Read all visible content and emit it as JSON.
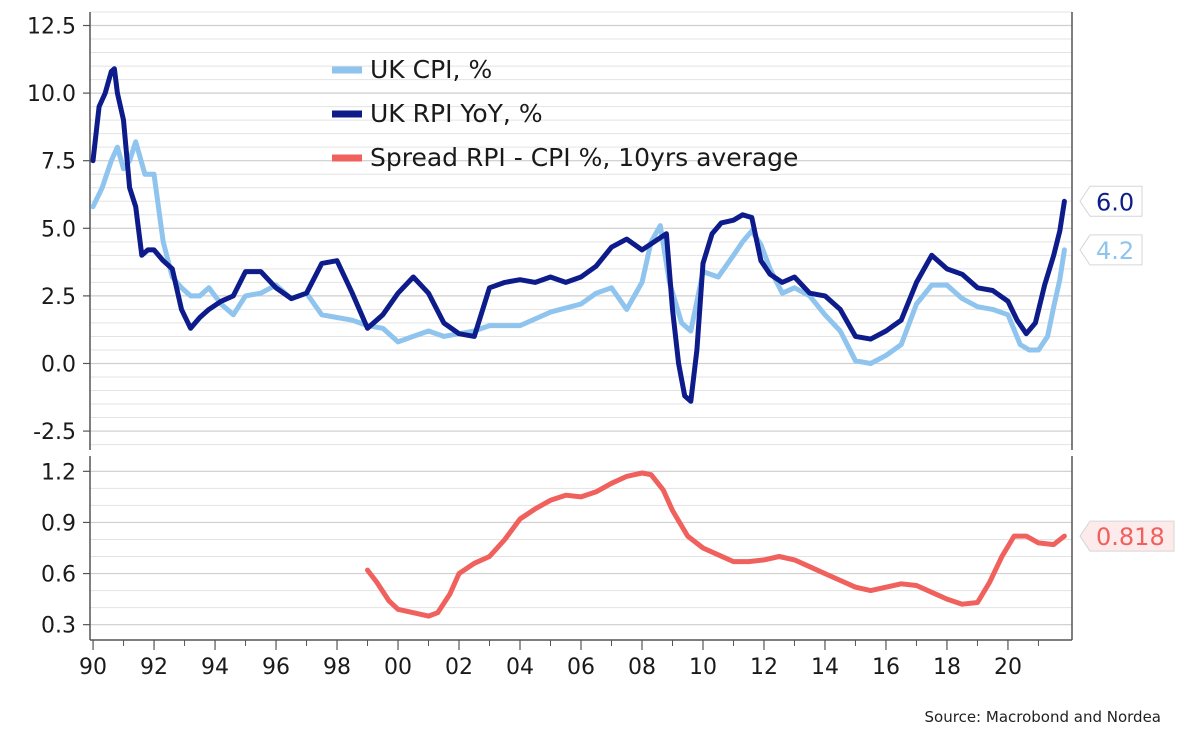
{
  "source": "Source: Macrobond and Nordea",
  "chart_data": [
    {
      "type": "line",
      "ylim": [
        -3.2,
        13.0
      ],
      "y_ticks": [
        12.5,
        10.0,
        7.5,
        5.0,
        2.5,
        0.0,
        -2.5
      ],
      "y_tick_labels": [
        "12.5",
        "10.0",
        "7.5",
        "5.0",
        "2.5",
        "0.0",
        "-2.5"
      ],
      "legend": {
        "entries": [
          "UK CPI, %",
          "UK RPI YoY, %",
          "Spread RPI - CPI %, 10yrs average"
        ],
        "colors": [
          "#8EC4EE",
          "#0D1C8A",
          "#F0605D"
        ],
        "placement": "top-center"
      },
      "series": [
        {
          "name": "UK CPI, %",
          "color": "#8EC4EE",
          "end_label": "4.2",
          "x": [
            1990.0,
            1990.3,
            1990.6,
            1990.8,
            1991.0,
            1991.2,
            1991.4,
            1991.7,
            1992.0,
            1992.3,
            1992.6,
            1992.9,
            1993.2,
            1993.5,
            1993.8,
            1994.2,
            1994.6,
            1995.0,
            1995.5,
            1996.0,
            1996.5,
            1997.0,
            1997.5,
            1998.0,
            1998.5,
            1999.0,
            1999.5,
            2000.0,
            2000.5,
            2001.0,
            2001.5,
            2002.0,
            2002.5,
            2003.0,
            2004.0,
            2005.0,
            2006.0,
            2006.5,
            2007.0,
            2007.5,
            2008.0,
            2008.3,
            2008.6,
            2008.9,
            2009.3,
            2009.6,
            2010.0,
            2010.5,
            2011.0,
            2011.3,
            2011.6,
            2011.9,
            2012.2,
            2012.6,
            2013.0,
            2013.5,
            2014.0,
            2014.5,
            2015.0,
            2015.5,
            2016.0,
            2016.5,
            2017.0,
            2017.5,
            2018.0,
            2018.5,
            2019.0,
            2019.5,
            2020.0,
            2020.4,
            2020.7,
            2021.0,
            2021.3,
            2021.5,
            2021.7,
            2021.85
          ],
          "y": [
            5.8,
            6.5,
            7.5,
            8.0,
            7.2,
            7.5,
            8.2,
            7.0,
            7.0,
            4.5,
            3.2,
            2.8,
            2.5,
            2.5,
            2.8,
            2.2,
            1.8,
            2.5,
            2.6,
            2.9,
            2.4,
            2.6,
            1.8,
            1.7,
            1.6,
            1.4,
            1.3,
            0.8,
            1.0,
            1.2,
            1.0,
            1.1,
            1.2,
            1.4,
            1.4,
            1.9,
            2.2,
            2.6,
            2.8,
            2.0,
            3.0,
            4.5,
            5.1,
            3.0,
            1.5,
            1.2,
            3.4,
            3.2,
            4.0,
            4.5,
            4.9,
            4.4,
            3.5,
            2.6,
            2.8,
            2.5,
            1.8,
            1.2,
            0.1,
            0.0,
            0.3,
            0.7,
            2.2,
            2.9,
            2.9,
            2.4,
            2.1,
            2.0,
            1.8,
            0.7,
            0.5,
            0.5,
            1.0,
            2.1,
            3.1,
            4.2
          ]
        },
        {
          "name": "UK RPI YoY, %",
          "color": "#0D1C8A",
          "end_label": "6.0",
          "x": [
            1990.0,
            1990.2,
            1990.4,
            1990.6,
            1990.7,
            1990.8,
            1991.0,
            1991.2,
            1991.4,
            1991.6,
            1991.8,
            1992.0,
            1992.3,
            1992.6,
            1992.9,
            1993.2,
            1993.5,
            1993.8,
            1994.2,
            1994.6,
            1995.0,
            1995.5,
            1996.0,
            1996.5,
            1997.0,
            1997.5,
            1998.0,
            1998.5,
            1999.0,
            1999.5,
            2000.0,
            2000.5,
            2001.0,
            2001.5,
            2002.0,
            2002.5,
            2003.0,
            2003.5,
            2004.0,
            2004.5,
            2005.0,
            2005.5,
            2006.0,
            2006.5,
            2007.0,
            2007.5,
            2008.0,
            2008.4,
            2008.8,
            2009.0,
            2009.2,
            2009.4,
            2009.6,
            2009.8,
            2010.0,
            2010.3,
            2010.6,
            2011.0,
            2011.3,
            2011.6,
            2011.9,
            2012.2,
            2012.6,
            2013.0,
            2013.5,
            2014.0,
            2014.5,
            2015.0,
            2015.5,
            2016.0,
            2016.5,
            2017.0,
            2017.5,
            2018.0,
            2018.5,
            2019.0,
            2019.5,
            2020.0,
            2020.3,
            2020.6,
            2020.9,
            2021.2,
            2021.5,
            2021.7,
            2021.85
          ],
          "y": [
            7.5,
            9.5,
            10.0,
            10.8,
            10.9,
            10.0,
            9.0,
            6.5,
            5.8,
            4.0,
            4.2,
            4.2,
            3.8,
            3.5,
            2.0,
            1.3,
            1.7,
            2.0,
            2.3,
            2.5,
            3.4,
            3.4,
            2.8,
            2.4,
            2.6,
            3.7,
            3.8,
            2.6,
            1.3,
            1.8,
            2.6,
            3.2,
            2.6,
            1.5,
            1.1,
            1.0,
            2.8,
            3.0,
            3.1,
            3.0,
            3.2,
            3.0,
            3.2,
            3.6,
            4.3,
            4.6,
            4.2,
            4.5,
            4.8,
            2.0,
            0.0,
            -1.2,
            -1.4,
            0.5,
            3.7,
            4.8,
            5.2,
            5.3,
            5.5,
            5.4,
            3.8,
            3.3,
            3.0,
            3.2,
            2.6,
            2.5,
            2.0,
            1.0,
            0.9,
            1.2,
            1.6,
            3.0,
            4.0,
            3.5,
            3.3,
            2.8,
            2.7,
            2.3,
            1.6,
            1.1,
            1.5,
            2.9,
            4.0,
            4.9,
            6.0
          ]
        }
      ]
    },
    {
      "type": "line",
      "ylim": [
        0.21,
        1.29
      ],
      "y_ticks": [
        1.2,
        0.9,
        0.6,
        0.3
      ],
      "y_tick_labels": [
        "1.2",
        "0.9",
        "0.6",
        "0.3"
      ],
      "x_ticks": [
        1990,
        1992,
        1994,
        1996,
        1998,
        2000,
        2002,
        2004,
        2006,
        2008,
        2010,
        2012,
        2014,
        2016,
        2018,
        2020
      ],
      "x_tick_labels": [
        "90",
        "92",
        "94",
        "96",
        "98",
        "00",
        "02",
        "04",
        "06",
        "08",
        "10",
        "12",
        "14",
        "16",
        "18",
        "20"
      ],
      "xlim": [
        1989.9,
        2022.1
      ],
      "series": [
        {
          "name": "Spread RPI - CPI %, 10yrs average",
          "color": "#F0605D",
          "end_label": "0.818",
          "x": [
            1999.0,
            1999.3,
            1999.7,
            2000.0,
            2000.5,
            2001.0,
            2001.3,
            2001.7,
            2002.0,
            2002.5,
            2003.0,
            2003.5,
            2004.0,
            2004.5,
            2005.0,
            2005.5,
            2006.0,
            2006.5,
            2007.0,
            2007.5,
            2008.0,
            2008.3,
            2008.7,
            2009.0,
            2009.5,
            2010.0,
            2010.5,
            2011.0,
            2011.5,
            2012.0,
            2012.5,
            2013.0,
            2013.5,
            2014.0,
            2014.5,
            2015.0,
            2015.5,
            2016.0,
            2016.5,
            2017.0,
            2017.5,
            2018.0,
            2018.5,
            2019.0,
            2019.4,
            2019.8,
            2020.2,
            2020.6,
            2021.0,
            2021.5,
            2021.85
          ],
          "y": [
            0.62,
            0.55,
            0.44,
            0.39,
            0.37,
            0.35,
            0.37,
            0.48,
            0.6,
            0.66,
            0.7,
            0.8,
            0.92,
            0.98,
            1.03,
            1.06,
            1.05,
            1.08,
            1.13,
            1.17,
            1.19,
            1.18,
            1.09,
            0.97,
            0.82,
            0.75,
            0.71,
            0.67,
            0.67,
            0.68,
            0.7,
            0.68,
            0.64,
            0.6,
            0.56,
            0.52,
            0.5,
            0.52,
            0.54,
            0.53,
            0.49,
            0.45,
            0.42,
            0.43,
            0.55,
            0.7,
            0.82,
            0.82,
            0.78,
            0.77,
            0.82
          ]
        }
      ]
    }
  ]
}
